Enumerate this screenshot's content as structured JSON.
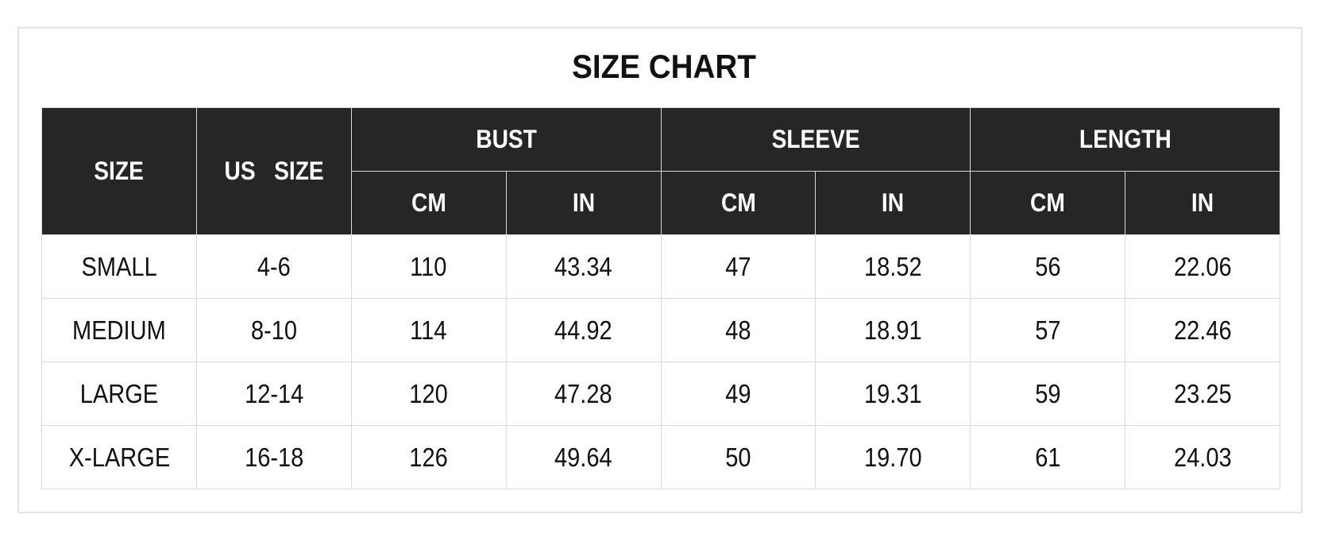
{
  "title": "SIZE CHART",
  "header": {
    "size": "SIZE",
    "us_size": "US   SIZE",
    "groups": [
      "BUST",
      "SLEEVE",
      "LENGTH"
    ],
    "units": [
      "CM",
      "IN",
      "CM",
      "IN",
      "CM",
      "IN"
    ]
  },
  "rows": [
    [
      "SMALL",
      "4-6",
      "110",
      "43.34",
      "47",
      "18.52",
      "56",
      "22.06"
    ],
    [
      "MEDIUM",
      "8-10",
      "114",
      "44.92",
      "48",
      "18.91",
      "57",
      "22.46"
    ],
    [
      "LARGE",
      "12-14",
      "120",
      "47.28",
      "49",
      "19.31",
      "59",
      "23.25"
    ],
    [
      "X-LARGE",
      "16-18",
      "126",
      "49.64",
      "50",
      "19.70",
      "61",
      "24.03"
    ]
  ],
  "colors": {
    "header_bg": "#262626",
    "header_text": "#ffffff",
    "border": "#d8d8d8"
  }
}
